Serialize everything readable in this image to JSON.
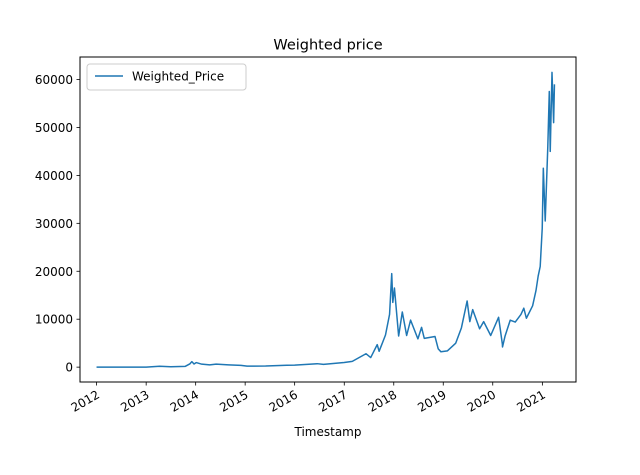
{
  "chart_data": {
    "type": "line",
    "title": "Weighted price",
    "xlabel": "Timestamp",
    "ylabel": "",
    "xlim": [
      "2011-09-01",
      "2021-09-06"
    ],
    "ylim": [
      -3100,
      64700
    ],
    "x_ticks": [
      "2012",
      "2013",
      "2014",
      "2015",
      "2016",
      "2017",
      "2018",
      "2019",
      "2020",
      "2021"
    ],
    "y_ticks": [
      0,
      10000,
      20000,
      30000,
      40000,
      50000,
      60000
    ],
    "grid": false,
    "legend": {
      "position": "upper left",
      "entries": [
        "Weighted_Price"
      ]
    },
    "series": [
      {
        "name": "Weighted_Price",
        "color": "#1f77b4",
        "points": [
          [
            "2012-01-01",
            5
          ],
          [
            "2012-06-01",
            6
          ],
          [
            "2013-01-01",
            13
          ],
          [
            "2013-04-10",
            190
          ],
          [
            "2013-07-01",
            90
          ],
          [
            "2013-10-15",
            150
          ],
          [
            "2013-11-20",
            700
          ],
          [
            "2013-12-04",
            1150
          ],
          [
            "2013-12-20",
            650
          ],
          [
            "2014-01-05",
            950
          ],
          [
            "2014-02-15",
            620
          ],
          [
            "2014-04-15",
            480
          ],
          [
            "2014-06-01",
            640
          ],
          [
            "2014-09-01",
            480
          ],
          [
            "2014-12-01",
            370
          ],
          [
            "2015-01-15",
            210
          ],
          [
            "2015-06-01",
            240
          ],
          [
            "2015-11-04",
            400
          ],
          [
            "2016-01-01",
            430
          ],
          [
            "2016-06-15",
            720
          ],
          [
            "2016-08-01",
            580
          ],
          [
            "2016-12-31",
            960
          ],
          [
            "2017-03-01",
            1200
          ],
          [
            "2017-06-10",
            2800
          ],
          [
            "2017-07-15",
            2000
          ],
          [
            "2017-09-01",
            4700
          ],
          [
            "2017-09-15",
            3300
          ],
          [
            "2017-11-01",
            6700
          ],
          [
            "2017-12-01",
            11000
          ],
          [
            "2017-12-17",
            19500
          ],
          [
            "2017-12-25",
            13500
          ],
          [
            "2018-01-06",
            16500
          ],
          [
            "2018-02-06",
            6500
          ],
          [
            "2018-03-05",
            11500
          ],
          [
            "2018-04-06",
            6600
          ],
          [
            "2018-05-05",
            9800
          ],
          [
            "2018-06-28",
            5900
          ],
          [
            "2018-07-25",
            8300
          ],
          [
            "2018-08-14",
            6000
          ],
          [
            "2018-11-01",
            6400
          ],
          [
            "2018-11-25",
            3800
          ],
          [
            "2018-12-15",
            3200
          ],
          [
            "2019-02-01",
            3400
          ],
          [
            "2019-04-03",
            5000
          ],
          [
            "2019-05-15",
            8200
          ],
          [
            "2019-06-26",
            13800
          ],
          [
            "2019-07-16",
            9500
          ],
          [
            "2019-08-06",
            12000
          ],
          [
            "2019-09-26",
            8000
          ],
          [
            "2019-10-26",
            9500
          ],
          [
            "2019-12-17",
            6600
          ],
          [
            "2020-02-13",
            10400
          ],
          [
            "2020-03-12",
            4800
          ],
          [
            "2020-03-13",
            4200
          ],
          [
            "2020-04-01",
            6500
          ],
          [
            "2020-05-09",
            9800
          ],
          [
            "2020-06-15",
            9400
          ],
          [
            "2020-07-27",
            11000
          ],
          [
            "2020-08-17",
            12300
          ],
          [
            "2020-09-05",
            10200
          ],
          [
            "2020-10-21",
            12800
          ],
          [
            "2020-11-15",
            16000
          ],
          [
            "2020-12-01",
            19000
          ],
          [
            "2020-12-16",
            21000
          ],
          [
            "2020-12-31",
            29000
          ],
          [
            "2021-01-08",
            41500
          ],
          [
            "2021-01-22",
            30500
          ],
          [
            "2021-02-10",
            46000
          ],
          [
            "2021-02-21",
            57500
          ],
          [
            "2021-02-28",
            45000
          ],
          [
            "2021-03-13",
            61500
          ],
          [
            "2021-03-25",
            51000
          ],
          [
            "2021-03-31",
            59000
          ]
        ]
      }
    ]
  }
}
